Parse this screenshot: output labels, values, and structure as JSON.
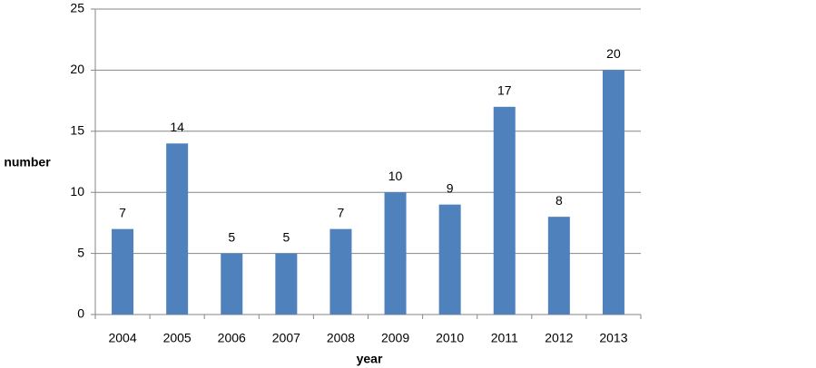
{
  "chart_data": {
    "type": "bar",
    "categories": [
      "2004",
      "2005",
      "2006",
      "2007",
      "2008",
      "2009",
      "2010",
      "2011",
      "2012",
      "2013"
    ],
    "values": [
      7,
      14,
      5,
      5,
      7,
      10,
      9,
      17,
      8,
      20
    ],
    "color": "#4f81bd",
    "xlabel": "year",
    "ylabel": "number",
    "ylim": [
      0,
      25
    ],
    "yticks": [
      0,
      5,
      10,
      15,
      20,
      25
    ],
    "grid": true
  }
}
